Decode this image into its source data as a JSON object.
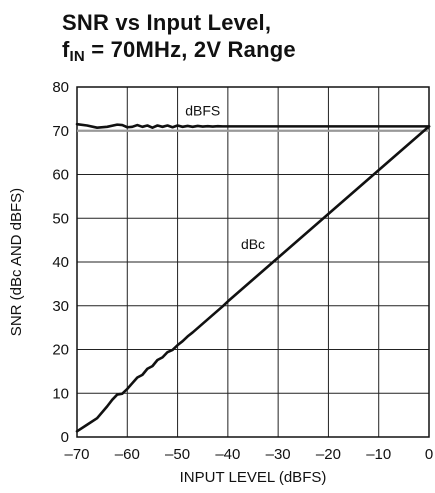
{
  "title_line1": "SNR vs Input Level,",
  "title_line2_prefix": "f",
  "title_line2_sub": "IN",
  "title_line2_suffix": " = 70MHz, 2V Range",
  "chart_data": {
    "type": "line",
    "xlabel": "INPUT LEVEL (dBFS)",
    "ylabel": "SNR (dBc AND dBFS)",
    "xlim": [
      -70,
      0
    ],
    "ylim": [
      0,
      80
    ],
    "xticks": [
      -70,
      -60,
      -50,
      -40,
      -30,
      -20,
      -10,
      0
    ],
    "xtick_labels": [
      "–70",
      "–60",
      "–50",
      "–40",
      "–30",
      "–20",
      "–10",
      "0"
    ],
    "yticks": [
      0,
      10,
      20,
      30,
      40,
      50,
      60,
      70,
      80
    ],
    "grid": true,
    "annotations": [
      {
        "text": "dBFS",
        "x": -45,
        "y": 73.5
      },
      {
        "text": "dBc",
        "x": -35,
        "y": 43
      }
    ],
    "series": [
      {
        "name": "dBFS",
        "color": "#111111",
        "x": [
          -70,
          -68,
          -66,
          -64,
          -62,
          -61,
          -60,
          -59,
          -58,
          -57,
          -56,
          -55,
          -54,
          -53,
          -52,
          -51,
          -50,
          -49,
          -48,
          -47,
          -46,
          -45,
          -44,
          -43,
          -42,
          -41,
          -40,
          -30,
          -20,
          -10,
          0
        ],
        "y": [
          71.5,
          71.2,
          70.7,
          70.9,
          71.4,
          71.3,
          70.8,
          70.9,
          71.3,
          70.9,
          71.2,
          70.7,
          71.2,
          70.9,
          71.2,
          70.8,
          71.2,
          70.9,
          71.1,
          70.9,
          71.1,
          70.95,
          71.05,
          70.95,
          71.05,
          71.0,
          71.0,
          71.0,
          71.0,
          71.0,
          71.0
        ]
      },
      {
        "name": "dBc",
        "color": "#111111",
        "x": [
          -70,
          -68,
          -66,
          -64,
          -63,
          -62,
          -61,
          -60,
          -59,
          -58,
          -57,
          -56,
          -55,
          -54,
          -53,
          -52,
          -51,
          -50,
          -49,
          -48,
          -47,
          -46,
          -45,
          -44,
          -43,
          -42,
          -41,
          -40,
          -30,
          -20,
          -10,
          0
        ],
        "y": [
          1.3,
          2.8,
          4.3,
          7.0,
          8.5,
          9.7,
          9.9,
          11.0,
          12.3,
          13.6,
          14.2,
          15.6,
          16.2,
          17.6,
          18.2,
          19.4,
          19.9,
          21.0,
          21.9,
          23.0,
          23.9,
          24.9,
          25.9,
          26.9,
          27.9,
          28.9,
          29.9,
          31.0,
          41.0,
          51.0,
          61.0,
          71.0
        ]
      }
    ],
    "reference_lines": [
      {
        "y": 70,
        "color": "#999999"
      }
    ]
  }
}
